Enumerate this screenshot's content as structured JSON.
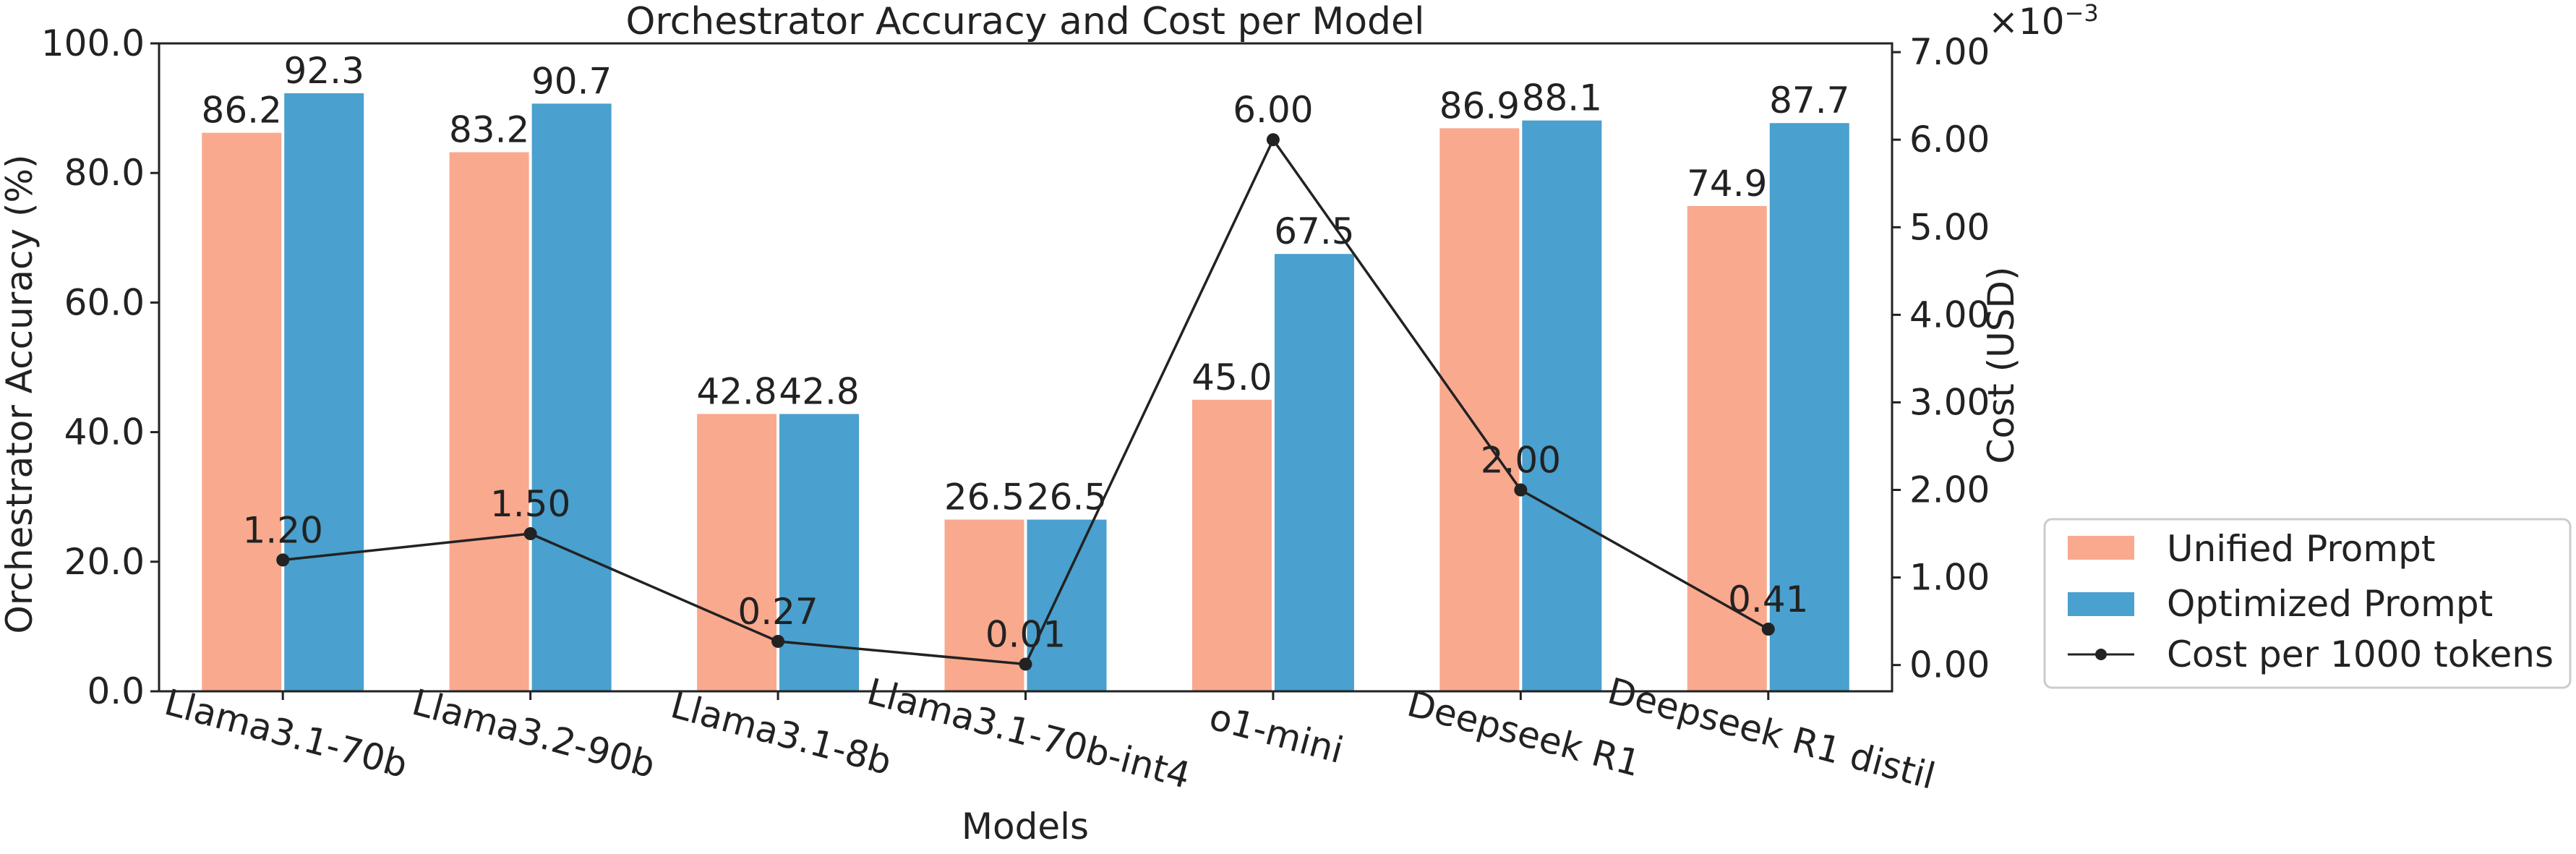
{
  "chart_data": {
    "type": "bar",
    "title": "Orchestrator Accuracy and Cost per Model",
    "xlabel": "Models",
    "ylabel": "Orchestrator Accuracy (%)",
    "y2label": "Cost (USD)",
    "y2_multiplier_label": "×10",
    "y2_multiplier_exponent": "−3",
    "ylim": [
      0,
      100
    ],
    "y2lim": [
      -0.3,
      7.1
    ],
    "yticks": [
      "0.0",
      "20.0",
      "40.0",
      "60.0",
      "80.0",
      "100.0"
    ],
    "yticks_values": [
      0,
      20,
      40,
      60,
      80,
      100
    ],
    "y2ticks": [
      "0.00",
      "1.00",
      "2.00",
      "3.00",
      "4.00",
      "5.00",
      "6.00",
      "7.00"
    ],
    "y2ticks_values": [
      0,
      1,
      2,
      3,
      4,
      5,
      6,
      7
    ],
    "categories": [
      "Llama3.1-70b",
      "Llama3.2-90b",
      "Llama3.1-8b",
      "Llama3.1-70b-int4",
      "o1-mini",
      "Deepseek R1",
      "Deepseek R1 distil"
    ],
    "series": [
      {
        "name": "Unified Prompt",
        "color": "#F9A98E",
        "values": [
          86.2,
          83.2,
          42.8,
          26.5,
          45.0,
          86.9,
          74.9
        ],
        "labels": [
          "86.2",
          "83.2",
          "42.8",
          "26.5",
          "45.0",
          "86.9",
          "74.9"
        ]
      },
      {
        "name": "Optimized Prompt",
        "color": "#4AA0CE",
        "values": [
          92.3,
          90.7,
          42.8,
          26.5,
          67.5,
          88.1,
          87.7
        ],
        "labels": [
          "92.3",
          "90.7",
          "42.8",
          "26.5",
          "67.5",
          "88.1",
          "87.7"
        ]
      }
    ],
    "line": {
      "name": "Cost per 1000 tokens",
      "color": "#222222",
      "values": [
        1.2,
        1.5,
        0.27,
        0.01,
        6.0,
        2.0,
        0.41
      ],
      "labels": [
        "1.20",
        "1.50",
        "0.27",
        "0.01",
        "6.00",
        "2.00",
        "0.41"
      ]
    },
    "legend": {
      "position": "bottom-right-outside",
      "entries": [
        "Unified Prompt",
        "Optimized Prompt",
        "Cost per 1000 tokens"
      ]
    }
  }
}
